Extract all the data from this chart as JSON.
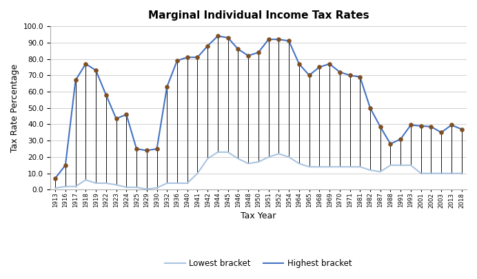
{
  "title": "Marginal Individual Income Tax Rates",
  "xlabel": "Tax Year",
  "ylabel": "Tax Rate Percentage",
  "years": [
    1913,
    1916,
    1917,
    1918,
    1919,
    1922,
    1923,
    1924,
    1925,
    1929,
    1930,
    1932,
    1936,
    1940,
    1941,
    1942,
    1944,
    1945,
    1946,
    1948,
    1950,
    1951,
    1952,
    1954,
    1964,
    1965,
    1968,
    1969,
    1970,
    1971,
    1981,
    1982,
    1987,
    1988,
    1991,
    1993,
    2001,
    2002,
    2003,
    2013,
    2018
  ],
  "highest": [
    7,
    15,
    67,
    77,
    73,
    58,
    43.5,
    46,
    25,
    24,
    25,
    63,
    79,
    81,
    81,
    88,
    94,
    93,
    86,
    82,
    84,
    92,
    92,
    91,
    77,
    70,
    75,
    77,
    72,
    70,
    69,
    50,
    38.5,
    28,
    31,
    39.6,
    39,
    38.6,
    35,
    39.6,
    37
  ],
  "lowest": [
    1,
    2,
    2,
    6,
    4,
    4,
    3,
    1.5,
    1.5,
    0.375,
    1.125,
    4,
    4,
    4,
    10,
    19,
    23,
    23,
    19,
    16,
    17,
    20,
    22,
    20,
    16,
    14,
    14,
    14,
    14,
    14,
    14,
    12,
    11,
    15,
    15,
    15,
    10,
    10,
    10,
    10,
    10
  ],
  "highest_color": "#4472c4",
  "lowest_color": "#aac4e0",
  "stem_color": "#1a1a1a",
  "marker_color": "#7f4f24",
  "ylim": [
    0,
    100
  ],
  "yticks": [
    0.0,
    10.0,
    20.0,
    30.0,
    40.0,
    50.0,
    60.0,
    70.0,
    80.0,
    90.0,
    100.0
  ],
  "legend_labels": [
    "Lowest bracket",
    "Highest bracket"
  ],
  "figsize": [
    6.92,
    4.05
  ],
  "dpi": 100
}
